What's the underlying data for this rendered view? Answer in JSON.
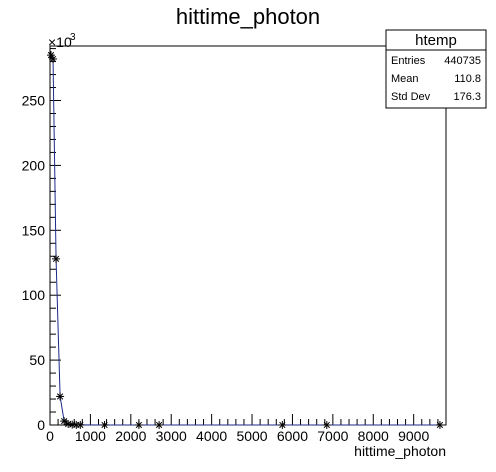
{
  "chart_data": {
    "type": "scatter",
    "title": "hittime_photon",
    "xlabel": "hittime_photon",
    "ylabel": "",
    "xlim": [
      0,
      9800
    ],
    "ylim": [
      0,
      292
    ],
    "y_multiplier_label": "×10",
    "y_multiplier_exponent": "3",
    "x_ticks": [
      0,
      1000,
      2000,
      3000,
      4000,
      5000,
      6000,
      7000,
      8000,
      9000
    ],
    "y_ticks": [
      0,
      50,
      100,
      150,
      200,
      250
    ],
    "marker": "asterisk",
    "line_color": "#1b2a8a",
    "series": [
      {
        "x": [
          25,
          75,
          150,
          250,
          350,
          450,
          550,
          650,
          750,
          1350,
          2200,
          2700,
          5750,
          6850,
          9650
        ],
        "values": [
          285,
          282,
          128,
          22,
          3,
          0.8,
          0.3,
          0.1,
          0.05,
          0.02,
          0.01,
          0.01,
          0.01,
          0.01,
          0.01
        ]
      }
    ],
    "legend": "none",
    "grid": false
  },
  "stats": {
    "title": "htemp",
    "rows": [
      {
        "label": "Entries",
        "value": "440735"
      },
      {
        "label": "Mean",
        "value": "110.8"
      },
      {
        "label": "Std Dev",
        "value": "176.3"
      }
    ]
  }
}
